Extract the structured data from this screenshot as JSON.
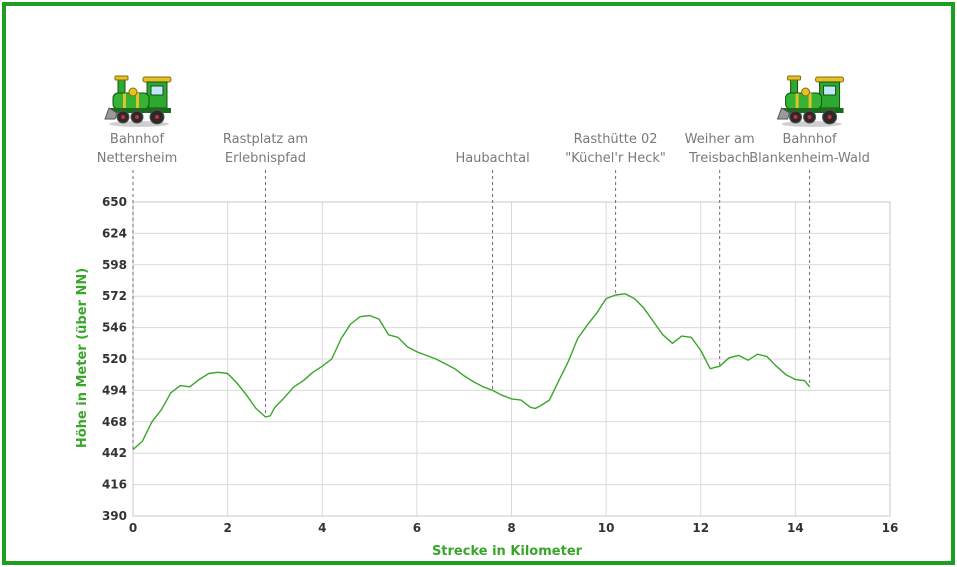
{
  "chart_data": {
    "type": "line",
    "xlabel": "Strecke in Kilometer",
    "ylabel": "Höhe in Meter (über NN)",
    "xlim": [
      0,
      16
    ],
    "ylim": [
      390,
      650
    ],
    "x_ticks": [
      0,
      2,
      4,
      6,
      8,
      10,
      12,
      14,
      16
    ],
    "y_ticks": [
      390,
      416,
      442,
      468,
      494,
      520,
      546,
      572,
      598,
      624,
      650
    ],
    "grid": true,
    "colors": {
      "line": "#3aa52b",
      "frame": "#1e9e1e",
      "axis_title": "#3aa52b",
      "grid": "#d9d9d9"
    },
    "series": [
      {
        "x": [
          0,
          0.2,
          0.4,
          0.6,
          0.8,
          1.0,
          1.2,
          1.4,
          1.6,
          1.8,
          2.0,
          2.2,
          2.4,
          2.6,
          2.8,
          2.9,
          3.0,
          3.2,
          3.4,
          3.6,
          3.8,
          4.0,
          4.2,
          4.4,
          4.6,
          4.8,
          5.0,
          5.2,
          5.4,
          5.6,
          5.8,
          6.0,
          6.2,
          6.4,
          6.6,
          6.8,
          7.0,
          7.2,
          7.4,
          7.6,
          7.8,
          8.0,
          8.2,
          8.4,
          8.5,
          8.6,
          8.8,
          9.0,
          9.2,
          9.4,
          9.6,
          9.8,
          10.0,
          10.2,
          10.4,
          10.6,
          10.8,
          11.0,
          11.2,
          11.4,
          11.6,
          11.8,
          12.0,
          12.2,
          12.4,
          12.6,
          12.8,
          13.0,
          13.2,
          13.4,
          13.6,
          13.8,
          14.0,
          14.2,
          14.3
        ],
        "y": [
          445,
          452,
          468,
          478,
          492,
          498,
          497,
          503,
          508,
          509,
          508,
          500,
          490,
          479,
          472,
          473,
          480,
          488,
          497,
          502,
          509,
          514,
          520,
          537,
          549,
          555,
          556,
          553,
          540,
          538,
          530,
          526,
          523,
          520,
          516,
          512,
          506,
          501,
          497,
          494,
          490,
          487,
          486,
          480,
          479,
          481,
          486,
          502,
          518,
          537,
          548,
          558,
          570,
          573,
          574,
          570,
          562,
          551,
          540,
          533,
          539,
          538,
          527,
          512,
          514,
          521,
          523,
          519,
          524,
          522,
          514,
          507,
          503,
          502,
          497
        ]
      }
    ],
    "annotations": [
      {
        "x": 0,
        "lines": [
          "Bahnhof",
          "Nettersheim"
        ],
        "has_icon": true
      },
      {
        "x": 2.8,
        "lines": [
          "Rastplatz am",
          "Erlebnispfad"
        ],
        "has_icon": false
      },
      {
        "x": 7.6,
        "lines": [
          "Haubachtal"
        ],
        "has_icon": false
      },
      {
        "x": 10.2,
        "lines": [
          "Rasthütte 02",
          "\"Küchel'r Heck\""
        ],
        "has_icon": false
      },
      {
        "x": 12.4,
        "lines": [
          "Weiher am",
          "Treisbach"
        ],
        "has_icon": false
      },
      {
        "x": 14.3,
        "lines": [
          "Bahnhof",
          "Blankenheim-Wald"
        ],
        "has_icon": true
      }
    ],
    "icons": [
      "locomotive-icon"
    ]
  }
}
